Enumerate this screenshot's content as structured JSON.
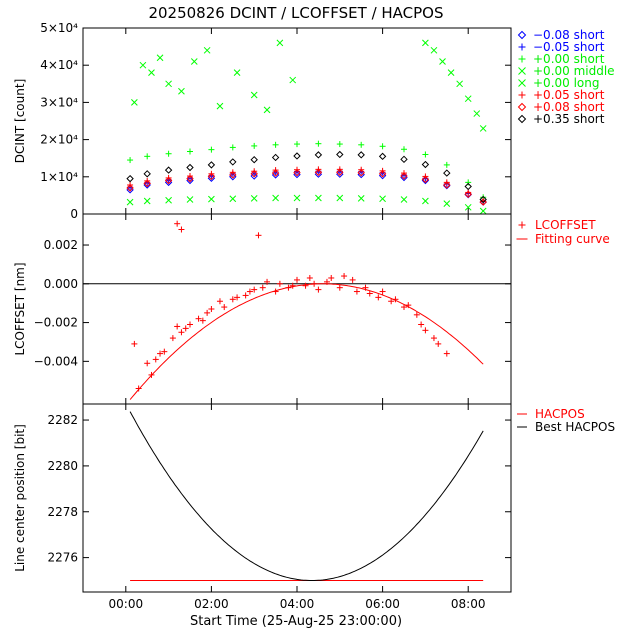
{
  "figure": {
    "title": "20250826 DCINT / LCOFFSET / HACPOS",
    "xlabel": "Start Time (25-Aug-25 23:00:00)",
    "x_ticks": [
      "00:00",
      "02:00",
      "04:00",
      "06:00",
      "08:00"
    ],
    "x_tick_hours": [
      0,
      2,
      4,
      6,
      8
    ],
    "xlim_hours": [
      -1.0,
      9.0
    ]
  },
  "chart_data": [
    {
      "type": "scatter",
      "name": "dcint",
      "ylabel": "DCINT [count]",
      "ylim": [
        0,
        50000
      ],
      "y_ticks": [
        {
          "value": 0,
          "label": "0"
        },
        {
          "value": 10000,
          "label": "1×10⁴"
        },
        {
          "value": 20000,
          "label": "2×10⁴"
        },
        {
          "value": 30000,
          "label": "3×10⁴"
        },
        {
          "value": 40000,
          "label": "4×10⁴"
        },
        {
          "value": 50000,
          "label": "5×10⁴"
        }
      ],
      "legend_position": "right",
      "series": [
        {
          "name": "−0.08 short",
          "symbol": "diamond",
          "color": "#0000ff",
          "x_hours": [
            0.1,
            0.5,
            1.0,
            1.5,
            2.0,
            2.5,
            3.0,
            3.5,
            4.0,
            4.5,
            5.0,
            5.5,
            6.0,
            6.5,
            7.0,
            7.5,
            8.0,
            8.35
          ],
          "values": [
            6500,
            7800,
            8500,
            9000,
            9600,
            10000,
            10200,
            10500,
            10600,
            10700,
            10700,
            10600,
            10300,
            9800,
            9000,
            7600,
            5200,
            3200
          ]
        },
        {
          "name": "−0.05 short",
          "symbol": "plus",
          "color": "#0000ff",
          "x_hours": [
            0.1,
            0.5,
            1.0,
            1.5,
            2.0,
            2.5,
            3.0,
            3.5,
            4.0,
            4.5,
            5.0,
            5.5,
            6.0,
            6.5,
            7.0,
            7.5,
            8.0,
            8.35
          ],
          "values": [
            7200,
            8400,
            9200,
            9700,
            10300,
            10800,
            11000,
            11300,
            11400,
            11500,
            11500,
            11400,
            11100,
            10500,
            9600,
            8100,
            5500,
            3300
          ]
        },
        {
          "name": "+0.00 short",
          "symbol": "plus",
          "color": "#00ff00",
          "x_hours": [
            0.1,
            0.5,
            1.0,
            1.5,
            2.0,
            2.5,
            3.0,
            3.5,
            4.0,
            4.5,
            5.0,
            5.5,
            6.0,
            6.5,
            7.0,
            7.5,
            8.0,
            8.35
          ],
          "values": [
            14500,
            15500,
            16200,
            16800,
            17300,
            17900,
            18300,
            18600,
            18800,
            18900,
            18800,
            18600,
            18200,
            17400,
            16000,
            13200,
            8500,
            4500
          ]
        },
        {
          "name": "+0.00 middle",
          "symbol": "x",
          "color": "#00ff00",
          "x_hours": [
            0.2,
            0.4,
            0.6,
            0.8,
            1.0,
            1.3,
            1.6,
            1.9,
            2.2,
            2.6,
            3.0,
            3.3,
            3.6,
            3.9,
            7.0,
            7.2,
            7.4,
            7.6,
            7.8,
            8.0,
            8.2,
            8.35
          ],
          "values": [
            30000,
            40000,
            38000,
            42000,
            35000,
            33000,
            41000,
            44000,
            29000,
            38000,
            32000,
            28000,
            46000,
            36000,
            46000,
            44000,
            41000,
            38000,
            35000,
            31000,
            27000,
            23000
          ]
        },
        {
          "name": "+0.00 long",
          "symbol": "x",
          "color": "#00ff00",
          "x_hours": [
            0.1,
            0.5,
            1.0,
            1.5,
            2.0,
            2.5,
            3.0,
            3.5,
            4.0,
            4.5,
            5.0,
            5.5,
            6.0,
            6.5,
            7.0,
            7.5,
            8.0,
            8.35
          ],
          "values": [
            3200,
            3500,
            3700,
            3900,
            4000,
            4100,
            4200,
            4300,
            4300,
            4300,
            4300,
            4200,
            4100,
            3900,
            3500,
            2800,
            1800,
            800
          ]
        },
        {
          "name": "+0.05 short",
          "symbol": "plus",
          "color": "#ff0000",
          "x_hours": [
            0.1,
            0.5,
            1.0,
            1.5,
            2.0,
            2.5,
            3.0,
            3.5,
            4.0,
            4.5,
            5.0,
            5.5,
            6.0,
            6.5,
            7.0,
            7.5,
            8.0,
            8.35
          ],
          "values": [
            7800,
            8900,
            9700,
            10200,
            10800,
            11200,
            11500,
            11800,
            11900,
            12000,
            12000,
            11900,
            11600,
            11000,
            10100,
            8500,
            5800,
            3400
          ]
        },
        {
          "name": "+0.08 short",
          "symbol": "diamond",
          "color": "#ff0000",
          "x_hours": [
            0.1,
            0.5,
            1.0,
            1.5,
            2.0,
            2.5,
            3.0,
            3.5,
            4.0,
            4.5,
            5.0,
            5.5,
            6.0,
            6.5,
            7.0,
            7.5,
            8.0,
            8.35
          ],
          "values": [
            7000,
            8200,
            9000,
            9500,
            10100,
            10500,
            10800,
            11000,
            11100,
            11200,
            11200,
            11100,
            10800,
            10200,
            9300,
            7800,
            5300,
            3200
          ]
        },
        {
          "name": "+0.35 short",
          "symbol": "diamond",
          "color": "#000000",
          "x_hours": [
            0.1,
            0.5,
            1.0,
            1.5,
            2.0,
            2.5,
            3.0,
            3.5,
            4.0,
            4.5,
            5.0,
            5.5,
            6.0,
            6.5,
            7.0,
            7.5,
            8.0,
            8.35
          ],
          "values": [
            9500,
            10800,
            11800,
            12500,
            13200,
            14000,
            14600,
            15200,
            15600,
            15900,
            16000,
            15900,
            15500,
            14700,
            13300,
            11000,
            7400,
            3900
          ]
        }
      ]
    },
    {
      "type": "scatter",
      "name": "lcoffset",
      "ylabel": "LCOFFSET [nm]",
      "ylim": [
        -0.0062,
        0.0036
      ],
      "y_ticks": [
        {
          "value": 0.002,
          "label": "0.002"
        },
        {
          "value": 0.0,
          "label": "0.000"
        },
        {
          "value": -0.002,
          "label": "−0.002"
        },
        {
          "value": -0.004,
          "label": "−0.004"
        }
      ],
      "zero_line": 0.0,
      "legend_position": "right",
      "series": [
        {
          "name": "LCOFFSET",
          "symbol": "plus",
          "color": "#ff0000",
          "x_hours": [
            0.2,
            0.3,
            0.5,
            0.6,
            0.7,
            0.8,
            0.9,
            1.1,
            1.2,
            1.3,
            1.4,
            1.5,
            1.7,
            1.8,
            1.9,
            2.0,
            2.2,
            2.3,
            2.5,
            2.6,
            2.8,
            2.9,
            3.0,
            3.2,
            3.3,
            3.5,
            3.6,
            3.8,
            3.9,
            4.0,
            4.2,
            4.3,
            4.4,
            4.5,
            4.7,
            4.8,
            5.0,
            5.1,
            5.3,
            5.4,
            5.6,
            5.7,
            5.9,
            6.0,
            6.2,
            6.3,
            6.5,
            6.6,
            6.8,
            6.9,
            7.0,
            7.2,
            7.3,
            7.5,
            1.2,
            1.3,
            3.1
          ],
          "values": [
            -0.0031,
            -0.0054,
            -0.0041,
            -0.0047,
            -0.0039,
            -0.0036,
            -0.0035,
            -0.0028,
            -0.0022,
            -0.0025,
            -0.0023,
            -0.0021,
            -0.0018,
            -0.0019,
            -0.0015,
            -0.0013,
            -0.0009,
            -0.0012,
            -0.0008,
            -0.0007,
            -0.0006,
            -0.0004,
            -0.0003,
            -0.0002,
            0.0001,
            -0.0004,
            0.0,
            -0.0002,
            -0.0001,
            0.0002,
            -0.0001,
            0.0003,
            0.0,
            -0.0003,
            0.0001,
            0.0003,
            -0.0002,
            0.0004,
            0.0002,
            -0.0004,
            -0.0002,
            -0.0005,
            -0.0007,
            -0.0004,
            -0.0009,
            -0.0008,
            -0.0012,
            -0.0011,
            -0.0016,
            -0.0021,
            -0.0024,
            -0.0028,
            -0.0031,
            -0.0036,
            0.0031,
            0.0028,
            0.0025
          ]
        },
        {
          "name": "Fitting curve",
          "symbol": "line",
          "color": "#ff0000",
          "fit": {
            "type": "quadratic",
            "vertex_hour": 4.6,
            "vertex_value": 0.0,
            "curvature": -0.000295,
            "x_range_hours": [
              0.1,
              8.35
            ]
          }
        }
      ]
    },
    {
      "type": "line",
      "name": "hacpos",
      "ylabel": "Line center position [bit]",
      "ylim": [
        2274.5,
        2282.7
      ],
      "y_ticks": [
        {
          "value": 2276,
          "label": "2276"
        },
        {
          "value": 2278,
          "label": "2278"
        },
        {
          "value": 2280,
          "label": "2280"
        },
        {
          "value": 2282,
          "label": "2282"
        }
      ],
      "legend_position": "top-right",
      "series": [
        {
          "name": "HACPOS",
          "color": "#ff0000",
          "constant_value": 2275.0,
          "x_range_hours": [
            0.1,
            8.35
          ]
        },
        {
          "name": "Best HACPOS",
          "color": "#000000",
          "fit": {
            "type": "quadratic",
            "vertex_hour": 4.35,
            "vertex_value": 2275.0,
            "curvature": 0.408,
            "x_range_hours": [
              0.1,
              8.35
            ]
          }
        }
      ]
    }
  ],
  "legend_texts": {
    "dcint": [
      "−0.08 short",
      "−0.05 short",
      "+0.00 short",
      "+0.00 middle",
      "+0.00 long",
      "+0.05 short",
      "+0.08 short",
      "+0.35 short"
    ],
    "lcoffset": [
      "LCOFFSET",
      "Fitting curve"
    ],
    "hacpos": [
      "HACPOS",
      "Best HACPOS"
    ]
  }
}
